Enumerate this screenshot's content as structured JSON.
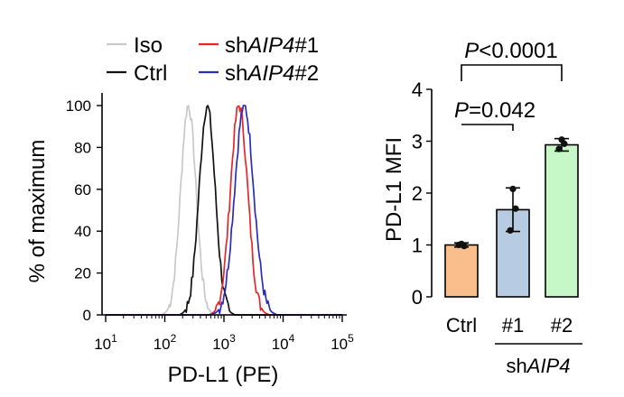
{
  "chart_data": [
    {
      "type": "line",
      "title": "",
      "xlabel": "PD-L1 (PE)",
      "ylabel": "% of maximum",
      "xscale": "log",
      "xlim": [
        10,
        100000
      ],
      "ylim": [
        0,
        100
      ],
      "x_ticks": [
        {
          "value": 10,
          "base": "10",
          "exp": "1"
        },
        {
          "value": 100,
          "base": "10",
          "exp": "2"
        },
        {
          "value": 1000,
          "base": "10",
          "exp": "3"
        },
        {
          "value": 10000,
          "base": "10",
          "exp": "4"
        },
        {
          "value": 100000,
          "base": "10",
          "exp": "5"
        }
      ],
      "y_ticks": [
        0,
        20,
        40,
        60,
        80,
        100
      ],
      "legend_position": "top",
      "series": [
        {
          "name": "Iso",
          "label_prefix": "",
          "label_italic": "",
          "label_suffix": "Iso",
          "color": "#c8c8c8",
          "peak": 250,
          "sigma": 0.13
        },
        {
          "name": "Ctrl",
          "label_prefix": "",
          "label_italic": "",
          "label_suffix": "Ctrl",
          "color": "#111111",
          "peak": 520,
          "sigma": 0.135
        },
        {
          "name": "shAIP4#1",
          "label_prefix": "sh",
          "label_italic": "AIP4",
          "label_suffix": "#1",
          "color": "#e8262a",
          "peak": 1800,
          "sigma": 0.145
        },
        {
          "name": "shAIP4#2",
          "label_prefix": "sh",
          "label_italic": "AIP4",
          "label_suffix": "#2",
          "color": "#2b2bbd",
          "peak": 2200,
          "sigma": 0.16
        }
      ]
    },
    {
      "type": "bar",
      "title": "",
      "ylabel": "PD-L1 MFI",
      "ylim": [
        0,
        4
      ],
      "y_ticks": [
        0,
        1,
        2,
        3,
        4
      ],
      "categories": [
        "Ctrl",
        "#1",
        "#2"
      ],
      "group_label_prefix": "sh",
      "group_label_italic": "AIP4",
      "values": [
        1.0,
        1.68,
        2.93
      ],
      "errors": [
        0.04,
        0.42,
        0.12
      ],
      "points": [
        [
          1.0,
          0.98,
          1.02
        ],
        [
          1.28,
          1.7,
          2.08
        ],
        [
          2.85,
          2.95,
          3.03
        ]
      ],
      "colors": [
        "#f9be8c",
        "#b7cbe3",
        "#c6f7c6"
      ],
      "comparisons": [
        {
          "from": "Ctrl",
          "to": "#1",
          "label_italic": "P",
          "label_rest": "=0.042"
        },
        {
          "from": "Ctrl",
          "to": "#2",
          "label_italic": "P",
          "label_rest": "<0.0001"
        }
      ]
    }
  ]
}
